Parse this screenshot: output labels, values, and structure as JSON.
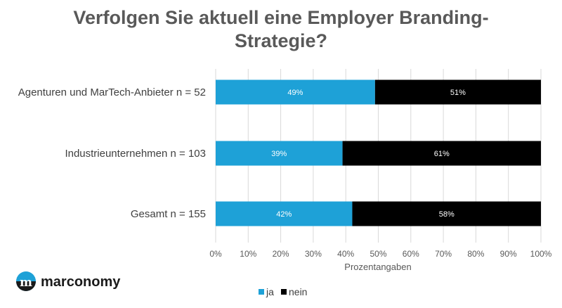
{
  "chart_data": {
    "type": "bar",
    "orientation": "horizontal",
    "stacked": true,
    "title_lines": [
      "Verfolgen Sie aktuell eine Employer Branding-",
      "Strategie?"
    ],
    "categories": [
      "Agenturen und MarTech-Anbieter n = 52",
      "Industrieunternehmen n = 103",
      "Gesamt n = 155"
    ],
    "series": [
      {
        "name": "ja",
        "color": "#1ea1d7",
        "values": [
          49,
          39,
          42
        ],
        "labels": [
          "49%",
          "39%",
          "42%"
        ]
      },
      {
        "name": "nein",
        "color": "#000000",
        "values": [
          51,
          61,
          58
        ],
        "labels": [
          "51%",
          "61%",
          "58%"
        ]
      }
    ],
    "xlim": [
      0,
      100
    ],
    "x_ticks": [
      "0%",
      "10%",
      "20%",
      "30%",
      "40%",
      "50%",
      "60%",
      "70%",
      "80%",
      "90%",
      "100%"
    ],
    "xlabel": "Prozentangaben",
    "grid": true,
    "legend_position": "bottom"
  },
  "logo": {
    "text": "marconomy",
    "icon": "marconomy-logo-icon",
    "accent": "#1ea1d7"
  }
}
